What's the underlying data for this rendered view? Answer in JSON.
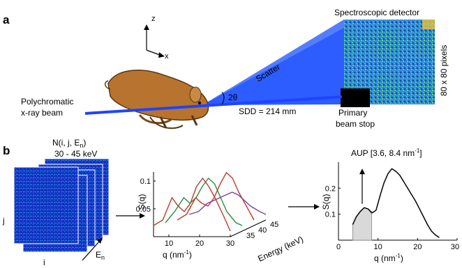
{
  "panel_a": {
    "label": "a",
    "axis_z": "z",
    "axis_x": "x",
    "source_label_line1": "Polychromatic",
    "source_label_line2": "x-ray beam",
    "scatter_label": "Scatter",
    "angle_label": "2θ",
    "sdd_label": "SDD = 214 mm",
    "detector_label": "Spectroscopic detector",
    "pixels_label": "80 x 80 pixels",
    "beamstop_line1": "Primary",
    "beamstop_line2": "beam stop",
    "colors": {
      "beam": "#1f44ff",
      "scatter_cone": "#2d5cff",
      "mouse": "#b8742f",
      "beamstop": "#000000"
    }
  },
  "panel_b": {
    "label": "b",
    "stack_title": "N(i, j, E",
    "stack_title_sub": "n",
    "stack_title_end": ")",
    "stack_range": "30 - 45 keV",
    "stack_axis_i": "i",
    "stack_axis_j": "j",
    "stack_axis_e": "E",
    "stack_axis_e_sub": "n",
    "aup_label_prefix": "AUP [3.6, 8.4 nm",
    "aup_label_sup": "-1",
    "aup_label_suffix": "]"
  },
  "chart_data": [
    {
      "type": "line",
      "ylabel": "S(q)",
      "xlabel": "q (nm",
      "xlabel_sup": "-1",
      "xlabel_end": ")",
      "zlabel": "Energy (keV)",
      "ylim": [
        0,
        0.11
      ],
      "yticks": [
        0.05,
        0.1
      ],
      "xticks": [
        10,
        20,
        30
      ],
      "zticks": [
        35,
        40,
        45
      ],
      "series": [
        {
          "energy": 30,
          "color": "#c0392b",
          "x": [
            5,
            8,
            11,
            13,
            15,
            17,
            19,
            21,
            23,
            25,
            28,
            30
          ],
          "y": [
            0.02,
            0.03,
            0.07,
            0.055,
            0.045,
            0.06,
            0.09,
            0.105,
            0.09,
            0.07,
            0.035,
            0.01
          ]
        },
        {
          "energy": 35,
          "color": "#2e8b3e",
          "x": [
            5,
            8,
            11,
            13,
            15,
            17,
            19,
            21,
            23,
            25,
            28,
            30
          ],
          "y": [
            0.015,
            0.035,
            0.06,
            0.05,
            0.06,
            0.08,
            0.095,
            0.085,
            0.06,
            0.035,
            0.015,
            0.01
          ]
        },
        {
          "energy": 40,
          "color": "#c0392b",
          "x": [
            5,
            8,
            11,
            13,
            15,
            17,
            19,
            21,
            23,
            25,
            28,
            30
          ],
          "y": [
            0.01,
            0.02,
            0.05,
            0.04,
            0.035,
            0.05,
            0.075,
            0.095,
            0.085,
            0.06,
            0.03,
            0.01
          ]
        },
        {
          "energy": 45,
          "color": "#7b3fa0",
          "x": [
            5,
            8,
            11,
            13,
            15,
            17,
            19,
            21,
            23,
            25,
            28,
            30
          ],
          "y": [
            0.01,
            0.015,
            0.03,
            0.035,
            0.04,
            0.045,
            0.05,
            0.045,
            0.035,
            0.025,
            0.015,
            0.01
          ]
        }
      ]
    },
    {
      "type": "area",
      "ylabel": "S(q)",
      "xlabel": "q (nm",
      "xlabel_sup": "-1",
      "xlabel_end": ")",
      "xlim": [
        0,
        30
      ],
      "ylim": [
        0,
        0.3
      ],
      "xticks": [
        0,
        10,
        20,
        30
      ],
      "yticks": [
        0.1,
        0.2
      ],
      "shaded_range": [
        3.6,
        8.4
      ],
      "x": [
        3.6,
        4.5,
        5.5,
        6.5,
        7.5,
        8.5,
        9.5,
        10.5,
        11.5,
        12.5,
        13.5,
        14.5,
        15.5,
        16.5,
        17.5,
        18.5,
        19.5,
        20.5,
        21.5,
        22.5,
        23.5,
        24.5,
        25.5
      ],
      "y": [
        0.06,
        0.09,
        0.11,
        0.125,
        0.12,
        0.105,
        0.115,
        0.17,
        0.22,
        0.255,
        0.275,
        0.265,
        0.25,
        0.225,
        0.2,
        0.175,
        0.15,
        0.12,
        0.09,
        0.06,
        0.035,
        0.02,
        0.01
      ]
    }
  ]
}
